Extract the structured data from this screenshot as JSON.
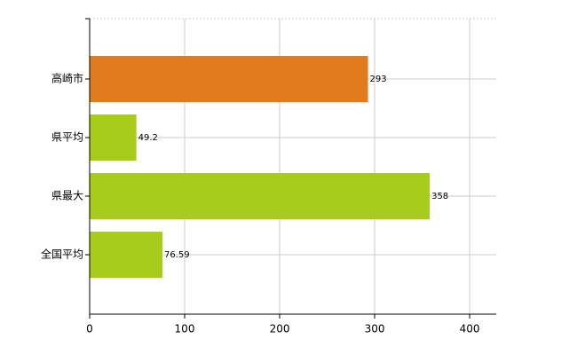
{
  "chart_data": {
    "type": "bar",
    "orientation": "horizontal",
    "categories": [
      "高崎市",
      "県平均",
      "県最大",
      "全国平均"
    ],
    "values": [
      293,
      49.2,
      358,
      76.59
    ],
    "colors": [
      "#e07b1e",
      "#a8cc1c",
      "#a8cc1c",
      "#a8cc1c"
    ],
    "xlim": [
      0,
      428
    ],
    "xticks": [
      0,
      100,
      200,
      300,
      400
    ],
    "grid": true
  }
}
